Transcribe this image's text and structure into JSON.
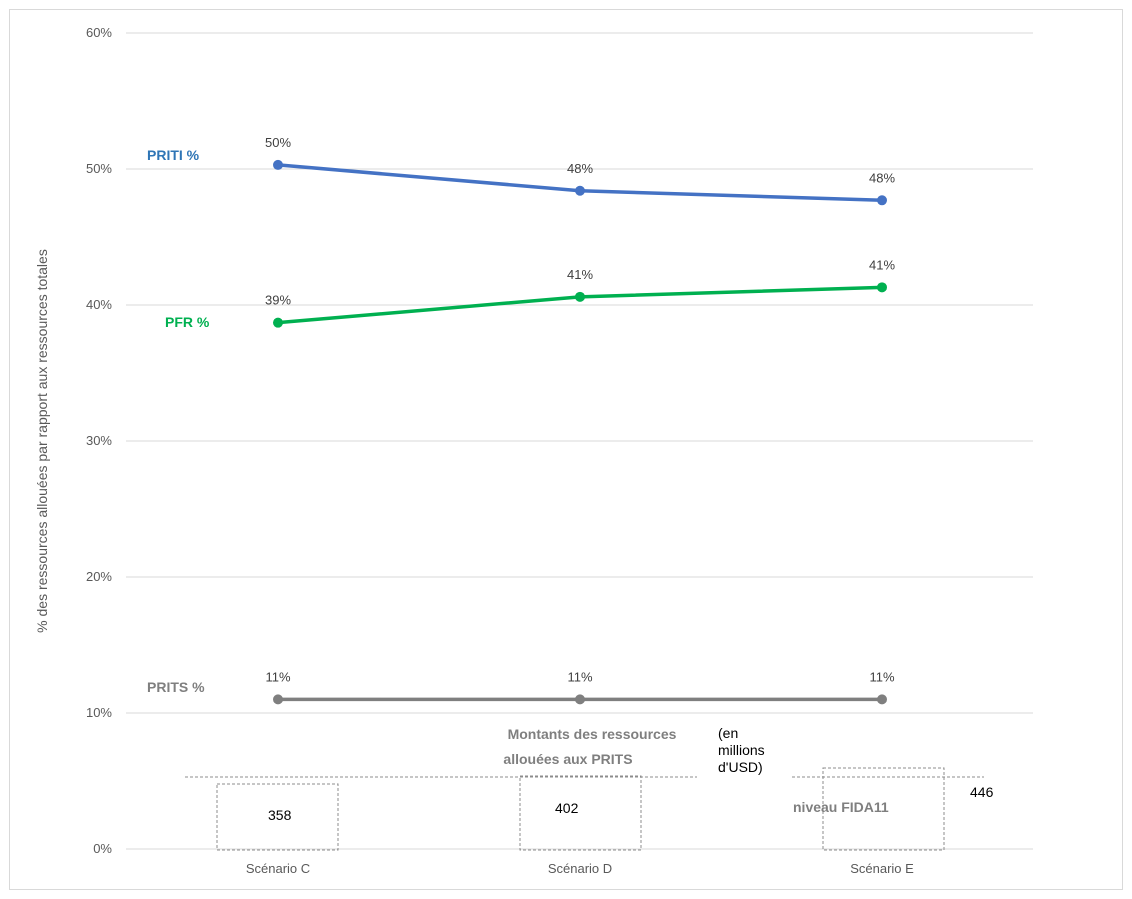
{
  "chart_data": {
    "type": "line",
    "categories": [
      "Scénario C",
      "Scénario D",
      "Scénario E"
    ],
    "ylabel": "% des ressources allouées par rapport aux ressources totales",
    "ylim": [
      0,
      60
    ],
    "yticks": [
      "0%",
      "10%",
      "20%",
      "30%",
      "40%",
      "50%",
      "60%"
    ],
    "ytick_values": [
      0,
      10,
      20,
      30,
      40,
      50,
      60
    ],
    "grid": true,
    "series": [
      {
        "name": "PRITI %",
        "values": [
          50.3,
          48.4,
          47.7
        ],
        "labels": [
          "50%",
          "48%",
          "48%"
        ],
        "color": "#4472c4",
        "name_color": "#2e75b6"
      },
      {
        "name": "PFR %",
        "values": [
          38.7,
          40.6,
          41.3
        ],
        "labels": [
          "39%",
          "41%",
          "41%"
        ],
        "color": "#00b050",
        "name_color": "#00b050"
      },
      {
        "name": "PRITS %",
        "values": [
          11,
          11,
          11
        ],
        "labels": [
          "11%",
          "11%",
          "11%"
        ],
        "color": "#7f7f7f",
        "name_color": "#7f7f7f"
      }
    ],
    "annotations": {
      "title_line1": "Montants des ressources",
      "title_line2": "allouées aux PRITS",
      "unit_line1": "(en",
      "unit_line2": "millions",
      "unit_line3": "d'USD)",
      "amounts": [
        "358",
        "402",
        "446"
      ],
      "fida_label": "niveau FIDA11"
    }
  }
}
